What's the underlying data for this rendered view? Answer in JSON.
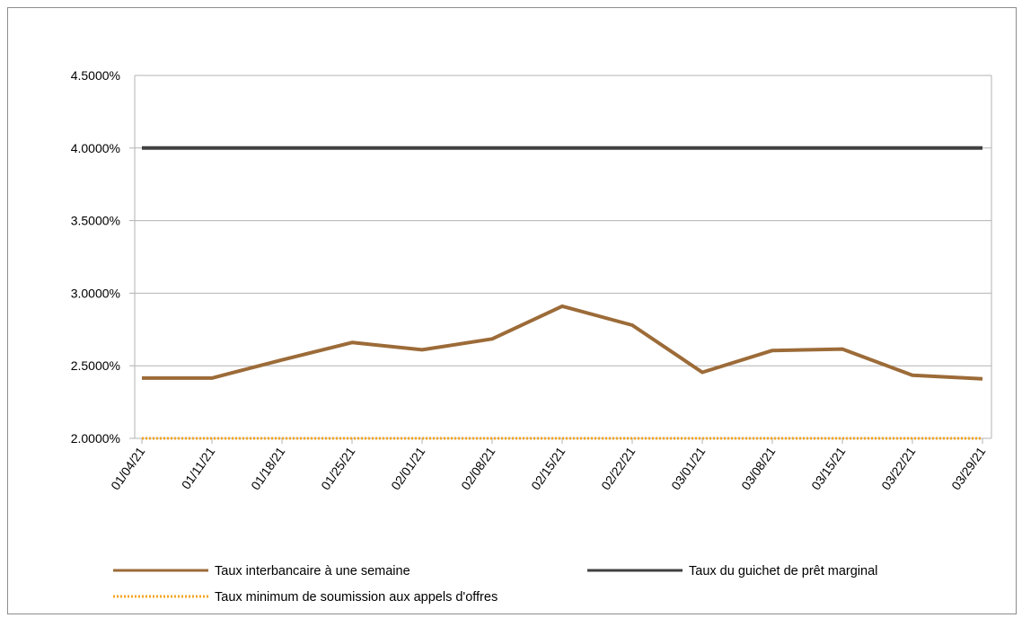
{
  "chart_data": {
    "type": "line",
    "title": "",
    "xlabel": "",
    "ylabel": "",
    "ylim": [
      0.02,
      0.045
    ],
    "y_ticks": [
      "2.0000%",
      "2.5000%",
      "3.0000%",
      "3.5000%",
      "4.0000%",
      "4.5000%"
    ],
    "y_tick_values": [
      0.02,
      0.025,
      0.03,
      0.035,
      0.04,
      0.045
    ],
    "x_ticks": [
      "01/04/21",
      "01/11/21",
      "01/18/21",
      "01/25/21",
      "02/01/21",
      "02/08/21",
      "02/15/21",
      "02/22/21",
      "03/01/21",
      "03/08/21",
      "03/15/21",
      "03/22/21",
      "03/29/21"
    ],
    "x_range": [
      "2021-01-04",
      "2021-03-29"
    ],
    "grid": true,
    "legend_position": "bottom",
    "series": [
      {
        "name": "Taux interbancaire à une semaine",
        "color": "#9c6b38",
        "style": "solid",
        "x": [
          "2021-01-04",
          "2021-01-11",
          "2021-01-18",
          "2021-01-25",
          "2021-02-01",
          "2021-02-08",
          "2021-02-15",
          "2021-02-22",
          "2021-03-01",
          "2021-03-08",
          "2021-03-15",
          "2021-03-22",
          "2021-03-29"
        ],
        "values": [
          0.02415,
          0.02415,
          0.0254,
          0.0266,
          0.0261,
          0.02685,
          0.0291,
          0.0278,
          0.02455,
          0.02605,
          0.02615,
          0.02435,
          0.0241
        ]
      },
      {
        "name": "Taux du guichet de prêt marginal",
        "color": "#404040",
        "style": "solid",
        "x": [
          "2021-01-04",
          "2021-03-29"
        ],
        "values": [
          0.04,
          0.04
        ]
      },
      {
        "name": "Taux minimum de soumission aux appels d'offres",
        "color": "#f5a623",
        "style": "dotted",
        "x": [
          "2021-01-04",
          "2021-03-29"
        ],
        "values": [
          0.02,
          0.02
        ]
      }
    ]
  }
}
